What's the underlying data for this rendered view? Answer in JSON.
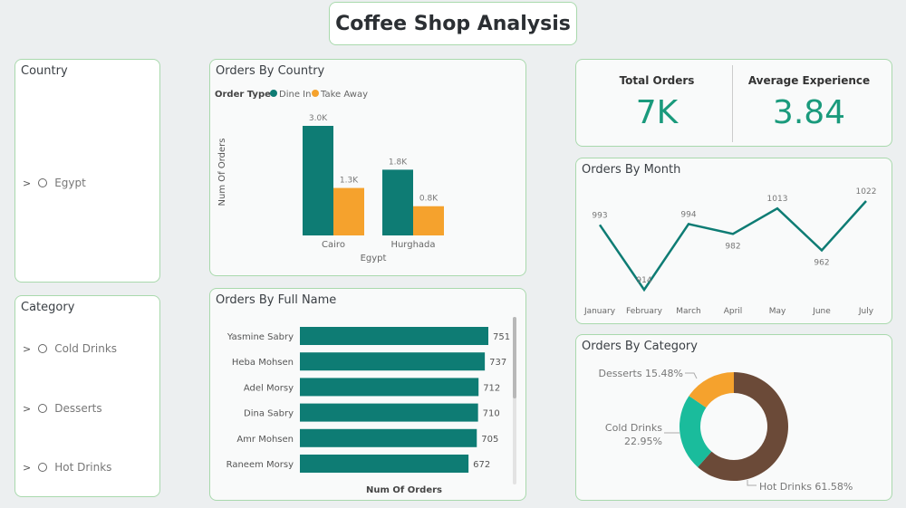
{
  "title": "Coffee Shop Analysis",
  "colors": {
    "dine_in": "#0e7c74",
    "take_away": "#f5a22d",
    "hot": "#6b4a38",
    "cold": "#1abc9c",
    "desserts": "#f5a22d",
    "line": "#0e7c74"
  },
  "country_slicer": {
    "title": "Country",
    "items": [
      {
        "label": "Egypt"
      }
    ]
  },
  "category_slicer": {
    "title": "Category",
    "items": [
      {
        "label": "Cold Drinks"
      },
      {
        "label": "Desserts"
      },
      {
        "label": "Hot Drinks"
      }
    ]
  },
  "kpis": {
    "total_orders_label": "Total Orders",
    "total_orders_value": "7K",
    "avg_exp_label": "Average Experience",
    "avg_exp_value": "3.84"
  },
  "chart_data": [
    {
      "type": "bar",
      "title": "Orders By Country",
      "legend_title": "Order Type",
      "legend_position": "top-left",
      "categories": [
        "Cairo",
        "Hurghada"
      ],
      "group_label": "Egypt",
      "ylabel": "Num Of Orders",
      "series": [
        {
          "name": "Dine In",
          "values": [
            3000,
            1800
          ],
          "labels": [
            "3.0K",
            "1.8K"
          ]
        },
        {
          "name": "Take Away",
          "values": [
            1300,
            800
          ],
          "labels": [
            "1.3K",
            "0.8K"
          ]
        }
      ]
    },
    {
      "type": "bar",
      "orientation": "horizontal",
      "title": "Orders By Full Name",
      "xlabel": "Num Of Orders",
      "categories": [
        "Yasmine Sabry",
        "Heba Mohsen",
        "Adel Morsy",
        "Dina Sabry",
        "Amr Mohsen",
        "Raneem Morsy"
      ],
      "values": [
        751,
        737,
        712,
        710,
        705,
        672
      ]
    },
    {
      "type": "line",
      "title": "Orders By Month",
      "categories": [
        "January",
        "February",
        "March",
        "April",
        "May",
        "June",
        "July"
      ],
      "values": [
        993,
        914,
        994,
        982,
        1013,
        962,
        1022
      ]
    },
    {
      "type": "pie",
      "donut": true,
      "title": "Orders By Category",
      "slices": [
        {
          "label": "Hot Drinks",
          "value": 61.58,
          "text": "Hot Drinks 61.58%"
        },
        {
          "label": "Cold Drinks",
          "value": 22.95,
          "text": "Cold Drinks",
          "pct": "22.95%"
        },
        {
          "label": "Desserts",
          "value": 15.48,
          "text": "Desserts 15.48%"
        }
      ]
    }
  ]
}
